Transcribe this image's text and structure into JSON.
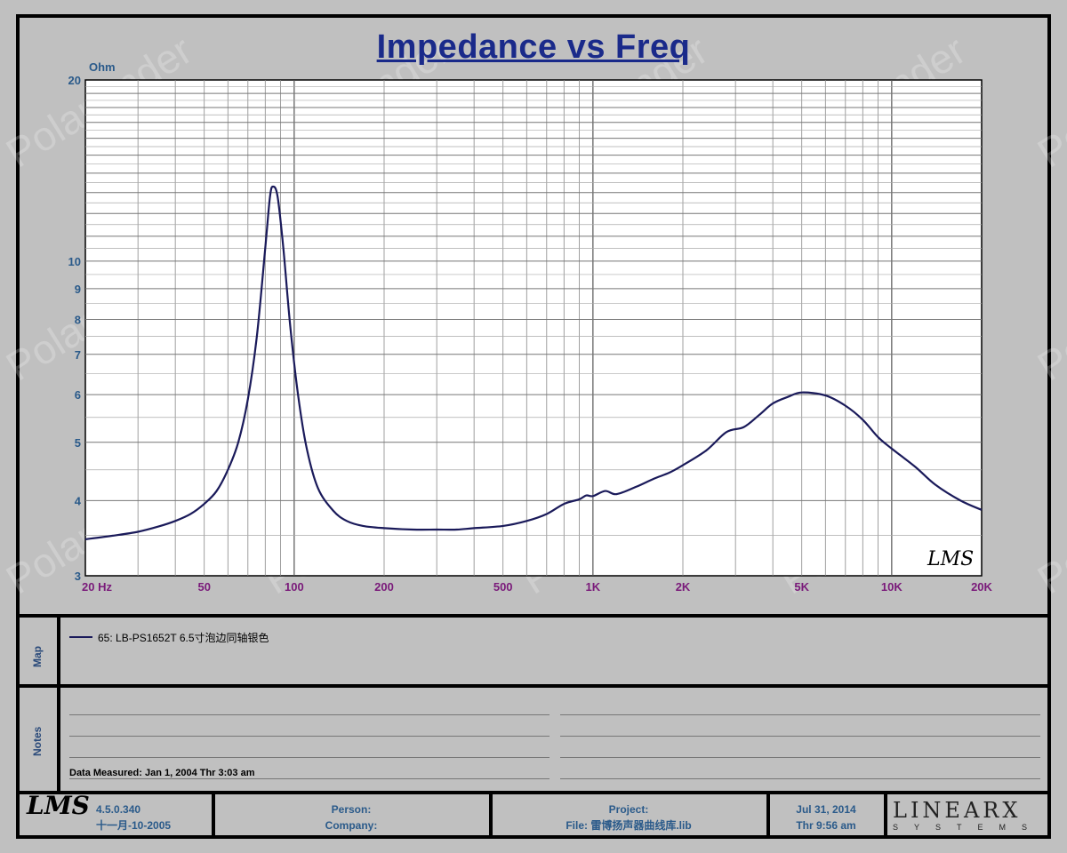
{
  "chart_data": {
    "type": "line",
    "title": "Impedance vs Freq",
    "ylabel": "Ohm",
    "xscale": "log",
    "yscale": "log",
    "xlim": [
      20,
      20000
    ],
    "ylim": [
      3,
      20
    ],
    "x_tick_labels": [
      {
        "value": 20,
        "label": "20  Hz"
      },
      {
        "value": 50,
        "label": "50"
      },
      {
        "value": 100,
        "label": "100"
      },
      {
        "value": 200,
        "label": "200"
      },
      {
        "value": 500,
        "label": "500"
      },
      {
        "value": 1000,
        "label": "1K"
      },
      {
        "value": 2000,
        "label": "2K"
      },
      {
        "value": 5000,
        "label": "5K"
      },
      {
        "value": 10000,
        "label": "10K"
      },
      {
        "value": 20000,
        "label": "20K"
      }
    ],
    "y_tick_labels": [
      {
        "value": 20,
        "label": "20"
      },
      {
        "value": 10,
        "label": "10"
      },
      {
        "value": 9,
        "label": "9"
      },
      {
        "value": 8,
        "label": "8"
      },
      {
        "value": 7,
        "label": "7"
      },
      {
        "value": 6,
        "label": "6"
      },
      {
        "value": 5,
        "label": "5"
      },
      {
        "value": 4,
        "label": "4"
      },
      {
        "value": 3,
        "label": "3"
      }
    ],
    "grid": true,
    "series": [
      {
        "name": "65: LB-PS1652T 6.5寸泡边同轴银色",
        "color": "#1a1a5a",
        "points": [
          [
            20,
            3.45
          ],
          [
            25,
            3.5
          ],
          [
            30,
            3.55
          ],
          [
            35,
            3.62
          ],
          [
            40,
            3.7
          ],
          [
            45,
            3.8
          ],
          [
            50,
            3.95
          ],
          [
            55,
            4.15
          ],
          [
            60,
            4.5
          ],
          [
            65,
            5.0
          ],
          [
            70,
            5.9
          ],
          [
            75,
            7.5
          ],
          [
            80,
            10.5
          ],
          [
            83,
            12.8
          ],
          [
            85,
            13.3
          ],
          [
            88,
            12.8
          ],
          [
            92,
            10.5
          ],
          [
            97,
            7.8
          ],
          [
            103,
            6.0
          ],
          [
            110,
            4.9
          ],
          [
            120,
            4.2
          ],
          [
            135,
            3.85
          ],
          [
            150,
            3.7
          ],
          [
            170,
            3.63
          ],
          [
            200,
            3.6
          ],
          [
            250,
            3.58
          ],
          [
            300,
            3.58
          ],
          [
            350,
            3.58
          ],
          [
            400,
            3.6
          ],
          [
            500,
            3.63
          ],
          [
            600,
            3.7
          ],
          [
            700,
            3.8
          ],
          [
            800,
            3.95
          ],
          [
            900,
            4.02
          ],
          [
            950,
            4.08
          ],
          [
            1000,
            4.07
          ],
          [
            1100,
            4.15
          ],
          [
            1200,
            4.1
          ],
          [
            1400,
            4.22
          ],
          [
            1600,
            4.35
          ],
          [
            1800,
            4.45
          ],
          [
            2000,
            4.58
          ],
          [
            2400,
            4.85
          ],
          [
            2800,
            5.2
          ],
          [
            3200,
            5.3
          ],
          [
            3600,
            5.55
          ],
          [
            4000,
            5.8
          ],
          [
            4500,
            5.95
          ],
          [
            5000,
            6.05
          ],
          [
            6000,
            5.98
          ],
          [
            7000,
            5.75
          ],
          [
            8000,
            5.45
          ],
          [
            9000,
            5.1
          ],
          [
            10000,
            4.88
          ],
          [
            12000,
            4.55
          ],
          [
            14000,
            4.25
          ],
          [
            17000,
            4.0
          ],
          [
            20000,
            3.86
          ]
        ]
      }
    ]
  },
  "map": {
    "label": "Map",
    "legend_entry": "65: LB-PS1652T 6.5寸泡边同轴银色"
  },
  "notes": {
    "label": "Notes",
    "data_measured": "Data Measured: Jan  1, 2004  Thr  3:03 am"
  },
  "footer": {
    "lms_logo_text": "LMS",
    "version": "4.5.0.340",
    "version_date": "十一月-10-2005",
    "person_label": "Person:",
    "company_label": "Company:",
    "project_label": "Project:",
    "file_label": "File: 雷博扬声器曲线库.lib",
    "date": "Jul 31, 2014",
    "time": "Thr  9:56 am",
    "brand_top": "LINEARX",
    "brand_bottom": "SYSTEMS"
  },
  "chart_logo_text": "LMS",
  "watermark_text": "Polarlander"
}
